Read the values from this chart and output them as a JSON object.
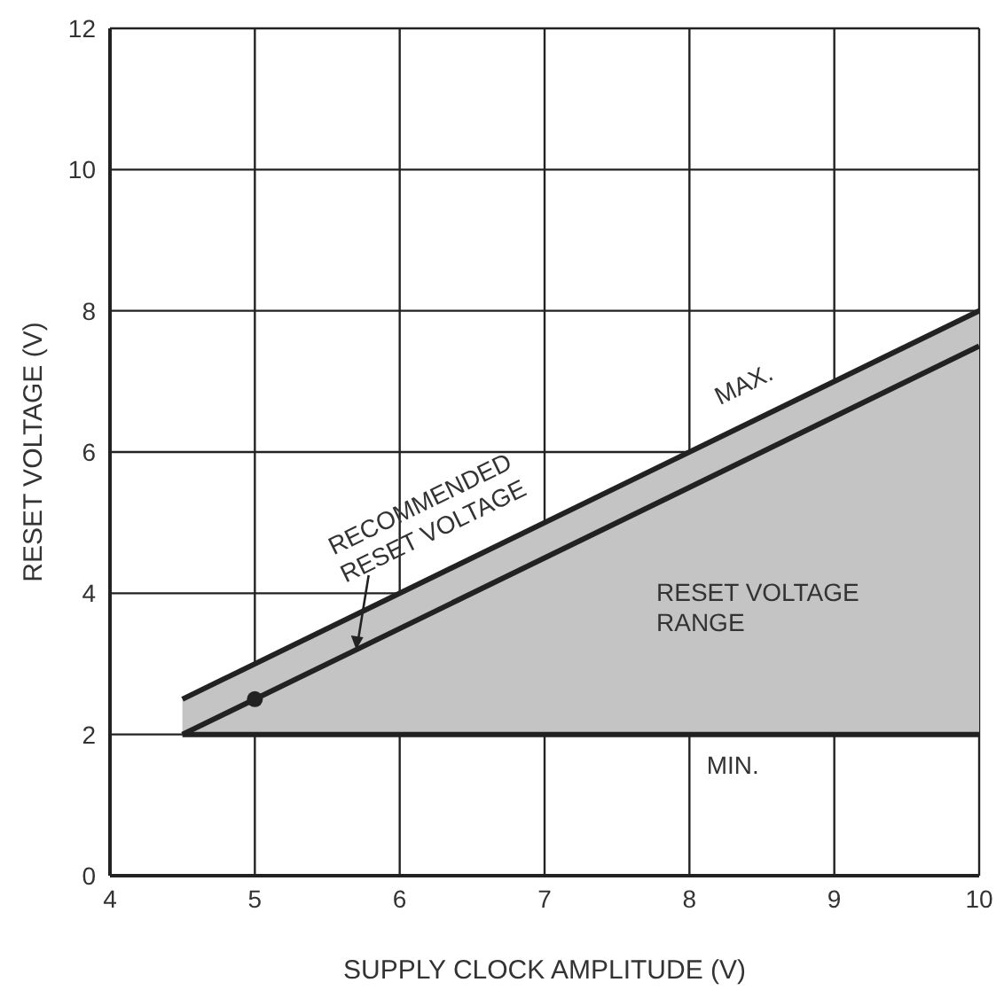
{
  "chart_data": {
    "type": "line",
    "xlabel": "SUPPLY CLOCK AMPLITUDE (V)",
    "ylabel": "RESET VOLTAGE (V)",
    "xlim": [
      4,
      10
    ],
    "ylim": [
      0,
      12
    ],
    "xticks": [
      4,
      5,
      6,
      7,
      8,
      9,
      10
    ],
    "yticks": [
      0,
      2,
      4,
      6,
      8,
      10,
      12
    ],
    "grid": true,
    "series": [
      {
        "color": "#222222",
        "x": [
          4.5,
          10
        ],
        "values": [
          2,
          7.5
        ],
        "lower": [
          2,
          2
        ],
        "upper": [
          2.5,
          8
        ]
      },
      {
        "color": "#222222",
        "x": [
          4.5,
          10
        ],
        "values": [
          2.5,
          8
        ]
      },
      {
        "color": "#222222",
        "x": [
          4.5,
          10
        ],
        "values": [
          2,
          2
        ]
      },
      {
        "type": "scatter",
        "color": "#222222",
        "marker": "circle",
        "x": [
          5
        ],
        "values": [
          2.5
        ]
      }
    ],
    "annotations": [
      {
        "text": "RECOMMENDED\nRESET VOLTAGE",
        "x": 5.7,
        "y": 3.2
      },
      {
        "text": "MAX.",
        "x": 8.4,
        "y": 6.5
      },
      "RESET VOLTAGE\nRANGE",
      {
        "text": "MIN.",
        "x": 8.3,
        "y": 2.0
      }
    ]
  }
}
